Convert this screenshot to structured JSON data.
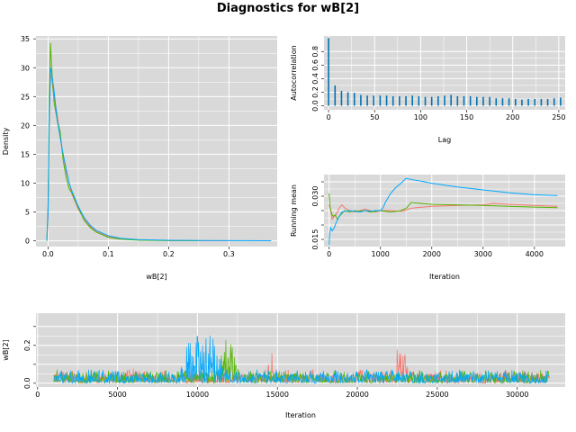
{
  "title": "Diagnostics for wB[2]",
  "colors": {
    "panel_bg": "#d9d9d9",
    "grid": "#ffffff",
    "chain_red": "#f8766d",
    "chain_green": "#53b400",
    "chain_blue": "#00a9ff"
  },
  "chart_data": [
    {
      "id": "density",
      "type": "line",
      "xlabel": "wB[2]",
      "ylabel": "Density",
      "xlim": [
        -0.02,
        0.38
      ],
      "ylim": [
        -1,
        35.5
      ],
      "xticks": [
        0.0,
        0.1,
        0.2,
        0.3
      ],
      "xtick_labels": [
        "0.0",
        "0.1",
        "0.2",
        "0.3"
      ],
      "yticks": [
        0,
        5,
        10,
        15,
        20,
        25,
        30,
        35
      ],
      "ytick_labels": [
        "0",
        "5",
        "10",
        "15",
        "20",
        "25",
        "30",
        "35"
      ],
      "grid": true,
      "series": [
        {
          "color": "#f8766d",
          "x": [
            -0.002,
            0.0,
            0.002,
            0.004,
            0.006,
            0.01,
            0.015,
            0.02,
            0.025,
            0.03,
            0.035,
            0.04,
            0.05,
            0.06,
            0.07,
            0.08,
            0.1,
            0.12,
            0.15,
            0.2,
            0.25,
            0.3
          ],
          "y": [
            0,
            4,
            20,
            29,
            28,
            25,
            22,
            18,
            15,
            12,
            10,
            8,
            5.5,
            3.8,
            2.5,
            1.6,
            0.7,
            0.35,
            0.15,
            0.05,
            0.02,
            0.01
          ]
        },
        {
          "color": "#53b400",
          "x": [
            -0.002,
            0.0,
            0.002,
            0.004,
            0.006,
            0.01,
            0.015,
            0.02,
            0.025,
            0.03,
            0.035,
            0.04,
            0.05,
            0.06,
            0.07,
            0.08,
            0.1,
            0.12,
            0.15,
            0.2,
            0.25
          ],
          "y": [
            0,
            6,
            25,
            34.3,
            30,
            24,
            21,
            19,
            14,
            11,
            9,
            8.2,
            5.8,
            3.5,
            2.3,
            1.5,
            0.6,
            0.3,
            0.12,
            0.04,
            0.01
          ]
        },
        {
          "color": "#00a9ff",
          "x": [
            -0.002,
            0.0,
            0.002,
            0.004,
            0.006,
            0.01,
            0.015,
            0.02,
            0.025,
            0.03,
            0.035,
            0.04,
            0.05,
            0.06,
            0.07,
            0.08,
            0.1,
            0.12,
            0.15,
            0.2,
            0.25,
            0.3,
            0.37
          ],
          "y": [
            0,
            5,
            22,
            30,
            29,
            26,
            21,
            18,
            15,
            12.5,
            10,
            8.5,
            6,
            4,
            2.7,
            1.8,
            0.9,
            0.45,
            0.2,
            0.1,
            0.05,
            0.03,
            0.01
          ]
        }
      ]
    },
    {
      "id": "autocorrelation",
      "type": "bar",
      "xlabel": "Lag",
      "ylabel": "Autocorrelation",
      "xlim": [
        -5,
        257
      ],
      "ylim": [
        -0.06,
        1.03
      ],
      "xticks": [
        0,
        50,
        100,
        150,
        200,
        250
      ],
      "xtick_labels": [
        "0",
        "50",
        "100",
        "150",
        "200",
        "250"
      ],
      "yticks": [
        0.0,
        0.2,
        0.4,
        0.6,
        0.8
      ],
      "ytick_labels": [
        "0.0",
        "0.2",
        "0.4",
        "0.6",
        "0.8"
      ],
      "grid": true,
      "color": "#0072b2",
      "lags": [
        0,
        7,
        14,
        21,
        28,
        35,
        42,
        49,
        56,
        63,
        70,
        77,
        84,
        91,
        98,
        105,
        112,
        119,
        126,
        133,
        140,
        147,
        154,
        161,
        168,
        175,
        182,
        189,
        196,
        203,
        210,
        217,
        224,
        231,
        238,
        245,
        252
      ],
      "values": [
        1.0,
        0.3,
        0.22,
        0.2,
        0.19,
        0.16,
        0.15,
        0.15,
        0.15,
        0.15,
        0.14,
        0.14,
        0.14,
        0.15,
        0.14,
        0.13,
        0.13,
        0.14,
        0.15,
        0.16,
        0.14,
        0.14,
        0.14,
        0.13,
        0.13,
        0.13,
        0.11,
        0.11,
        0.11,
        0.1,
        0.09,
        0.1,
        0.1,
        0.1,
        0.1,
        0.11,
        0.12
      ]
    },
    {
      "id": "running-mean",
      "type": "line",
      "xlabel": "Iteration",
      "ylabel": "Running mean",
      "xlim": [
        -100,
        4600
      ],
      "ylim": [
        0.0125,
        0.0375
      ],
      "xticks": [
        0,
        1000,
        2000,
        3000,
        4000
      ],
      "xtick_labels": [
        "0",
        "1000",
        "2000",
        "3000",
        "4000"
      ],
      "yticks": [
        0.015,
        0.02,
        0.025,
        0.03,
        0.035
      ],
      "ytick_labels": [
        "0.015",
        "",
        "",
        "0.030",
        ""
      ],
      "grid": true,
      "series": [
        {
          "color": "#f8766d",
          "x": [
            0,
            30,
            60,
            100,
            150,
            200,
            250,
            300,
            400,
            500,
            600,
            700,
            800,
            900,
            1000,
            1200,
            1400,
            1500,
            1550,
            1600,
            1700,
            2000,
            2500,
            3000,
            3200,
            3500,
            4000,
            4450
          ],
          "y": [
            0.027,
            0.025,
            0.022,
            0.023,
            0.024,
            0.026,
            0.027,
            0.026,
            0.025,
            0.0245,
            0.025,
            0.0255,
            0.025,
            0.0245,
            0.025,
            0.025,
            0.0248,
            0.0252,
            0.0255,
            0.0258,
            0.026,
            0.0265,
            0.0268,
            0.027,
            0.0275,
            0.0272,
            0.0268,
            0.0265
          ]
        },
        {
          "color": "#53b400",
          "x": [
            0,
            20,
            50,
            80,
            120,
            160,
            200,
            250,
            300,
            400,
            500,
            600,
            700,
            800,
            1000,
            1200,
            1400,
            1500,
            1600,
            1700,
            2000,
            2500,
            3000,
            3500,
            4000,
            4450
          ],
          "y": [
            0.031,
            0.026,
            0.024,
            0.023,
            0.0235,
            0.022,
            0.023,
            0.024,
            0.025,
            0.0245,
            0.025,
            0.0248,
            0.025,
            0.0245,
            0.025,
            0.0245,
            0.025,
            0.0258,
            0.0278,
            0.0276,
            0.0272,
            0.027,
            0.0268,
            0.0265,
            0.0262,
            0.026
          ]
        },
        {
          "color": "#00a9ff",
          "x": [
            0,
            10,
            30,
            60,
            100,
            140,
            200,
            250,
            300,
            400,
            500,
            600,
            700,
            800,
            900,
            1000,
            1050,
            1100,
            1200,
            1300,
            1400,
            1500,
            1600,
            1800,
            2000,
            2500,
            3000,
            3500,
            4000,
            4450
          ],
          "y": [
            0.013,
            0.017,
            0.019,
            0.018,
            0.019,
            0.021,
            0.023,
            0.0245,
            0.0248,
            0.025,
            0.0248,
            0.0245,
            0.025,
            0.0248,
            0.025,
            0.025,
            0.026,
            0.028,
            0.031,
            0.033,
            0.0345,
            0.0362,
            0.0358,
            0.0352,
            0.0345,
            0.0332,
            0.0322,
            0.0312,
            0.0305,
            0.0302
          ]
        }
      ]
    },
    {
      "id": "trace",
      "type": "line",
      "xlabel": "Iteration",
      "ylabel": "wB[2]",
      "xlim": [
        -100,
        33000
      ],
      "ylim": [
        -0.02,
        0.37
      ],
      "xticks": [
        0,
        5000,
        10000,
        15000,
        20000,
        25000,
        30000
      ],
      "xtick_labels": [
        "0",
        "5000",
        "10000",
        "15000",
        "20000",
        "25000",
        "30000"
      ],
      "yticks": [
        0.0,
        0.1,
        0.2,
        0.3
      ],
      "ytick_labels": [
        "0.0",
        "",
        "0.2",
        ""
      ],
      "grid": true,
      "iterations": [
        1000,
        32000
      ],
      "series": [
        {
          "color": "#f8766d",
          "bursts": [
            {
              "x": [
                14200,
                14800
              ],
              "peak": 0.27
            },
            {
              "x": [
                22200,
                23300
              ],
              "peak": 0.26
            },
            {
              "x": [
                5500,
                6200
              ],
              "peak": 0.12
            }
          ]
        },
        {
          "color": "#53b400",
          "bursts": [
            {
              "x": [
                11300,
                12600
              ],
              "peak": 0.31
            },
            {
              "x": [
                2000,
                3000
              ],
              "peak": 0.1
            }
          ]
        },
        {
          "color": "#00a9ff",
          "bursts": [
            {
              "x": [
                8800,
                11800
              ],
              "peak": 0.36
            },
            {
              "x": [
                20000,
                21000
              ],
              "peak": 0.1
            }
          ]
        }
      ]
    }
  ]
}
